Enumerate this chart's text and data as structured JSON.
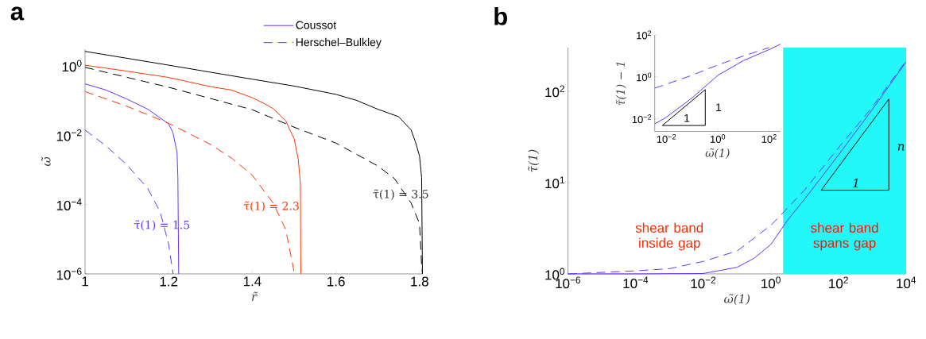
{
  "chart_data": [
    {
      "type": "line",
      "title": "a",
      "xlabel": "r̃",
      "ylabel": "ω̃",
      "log": "y",
      "xlim": [
        1,
        1.808
      ],
      "ylim": [
        1e-06,
        3
      ],
      "xticks": [
        1,
        1.2,
        1.4,
        1.6,
        1.8
      ],
      "yticks": [
        {
          "value": 1e-06,
          "label": "10$^{−6}$"
        },
        {
          "value": 0.0001,
          "label": "10$^{−4}$"
        },
        {
          "value": 0.01,
          "label": "10$^{−2}$"
        },
        {
          "value": 1,
          "label": "10$^{0}$"
        }
      ],
      "legend": "top right",
      "marker": "none",
      "series": [
        {
          "name": "Coussot",
          "color": "#6633ff",
          "line_style": "solid",
          "x": [
            1,
            1.05,
            1.1,
            1.15,
            1.2,
            1.21,
            1.22,
            1.222,
            1.224
          ],
          "values": [
            0.3,
            0.2,
            0.11,
            0.056,
            0.021,
            0.012,
            0.0032,
            0.0006,
            1e-06
          ]
        },
        {
          "name": "Herschel–Bulkley",
          "color": "#6633ff",
          "line_style": "dashed",
          "x": [
            1,
            1.05,
            1.1,
            1.15,
            1.18,
            1.2,
            1.2105
          ],
          "values": [
            0.014,
            0.0049,
            0.0014,
            0.00029,
            6e-05,
            7e-06,
            1e-06
          ]
        },
        {
          "color": "#ff3300",
          "line_style": "solid",
          "x": [
            1,
            1.1,
            1.2,
            1.3,
            1.35,
            1.4,
            1.43,
            1.45,
            1.48,
            1.49,
            1.5,
            1.51,
            1.515,
            1.516
          ],
          "values": [
            1.04,
            0.7,
            0.46,
            0.25,
            0.2,
            0.12,
            0.08,
            0.058,
            0.026,
            0.014,
            0.008,
            0.002,
            0.0004,
            1e-06
          ]
        },
        {
          "color": "#ff3300",
          "line_style": "dashed",
          "x": [
            1,
            1.1,
            1.2,
            1.3,
            1.35,
            1.4,
            1.45,
            1.48,
            1.501
          ],
          "values": [
            0.18,
            0.068,
            0.022,
            0.0054,
            0.0022,
            0.0007,
            0.00011,
            1.9e-05,
            1e-06
          ]
        },
        {
          "color": "#000000",
          "line_style": "solid",
          "x": [
            1,
            1.2,
            1.4,
            1.5,
            1.6,
            1.65,
            1.7,
            1.75,
            1.78,
            1.79,
            1.8,
            1.805,
            1.807
          ],
          "values": [
            2.6,
            1.04,
            0.41,
            0.26,
            0.15,
            0.1,
            0.056,
            0.034,
            0.014,
            0.0065,
            0.0025,
            0.0006,
            1e-06
          ]
        },
        {
          "color": "#000000",
          "line_style": "dashed",
          "x": [
            1,
            1.2,
            1.4,
            1.5,
            1.6,
            1.7,
            1.74,
            1.78,
            1.8,
            1.805,
            1.807
          ],
          "values": [
            0.9,
            0.24,
            0.054,
            0.017,
            0.0059,
            0.0013,
            0.00056,
            0.00011,
            2.8e-05,
            1.8e-06,
            1e-06
          ]
        }
      ],
      "annotations": [
        "τ̃(1) = 1.5",
        "τ̃(1) = 2.3",
        "τ̃(1) = 3.5"
      ]
    },
    {
      "type": "line",
      "title": "b",
      "xlabel": "ω̃(1)",
      "ylabel": "τ̃(1)",
      "log": "xy",
      "xlim": [
        1e-06,
        10000
      ],
      "ylim": [
        1,
        300
      ],
      "xticks": [
        {
          "value": 1e-06,
          "label": "10$^{−6}$"
        },
        {
          "value": 0.0001,
          "label": "10$^{−4}$"
        },
        {
          "value": 0.01,
          "label": "10$^{−2}$"
        },
        {
          "value": 1,
          "label": "10$^{0}$"
        },
        {
          "value": 100,
          "label": "10$^{2}$"
        },
        {
          "value": 10000,
          "label": "10$^{4}$"
        }
      ],
      "yticks": [
        {
          "value": 1,
          "label": "10$^{0}$"
        },
        {
          "value": 10,
          "label": "10$^{1}$"
        },
        {
          "value": 100,
          "label": "10$^{2}$"
        }
      ],
      "marker": "none",
      "series": [
        {
          "color": "#6633ff",
          "line_style": "solid",
          "x": [
            1e-06,
            0.0001,
            0.01,
            0.1,
            0.316,
            1,
            3.16,
            10,
            100,
            1000,
            10000
          ],
          "values": [
            1,
            1,
            1.01,
            1.18,
            1.48,
            2.1,
            3.9,
            6.6,
            20,
            63,
            210
          ]
        },
        {
          "color": "#6633ff",
          "line_style": "dashed",
          "x": [
            1e-06,
            0.0001,
            0.001,
            0.01,
            0.1,
            1,
            3.16,
            10,
            100,
            1000,
            10000
          ],
          "values": [
            1,
            1.08,
            1.14,
            1.37,
            1.78,
            3.4,
            5.3,
            8.3,
            24,
            67,
            215
          ]
        }
      ],
      "bands": [
        {
          "axis": "x",
          "from": 2.3,
          "to": 10000,
          "label": "shear band spans gap",
          "color": "#22f8f8"
        }
      ],
      "annotations": [
        "shear band inside gap",
        "n",
        "1"
      ]
    },
    {
      "type": "line",
      "xlabel": "ω̃(1)",
      "ylabel": "τ̃(1) − 1",
      "log": "xy",
      "xlim": [
        0.0035,
        275
      ],
      "ylim": [
        0.0025,
        100
      ],
      "xticks": [
        {
          "value": 0.01,
          "label": "10$^{−2}$"
        },
        {
          "value": 1,
          "label": "10$^{0}$"
        },
        {
          "value": 100,
          "label": "10$^{2}$"
        }
      ],
      "yticks": [
        {
          "value": 0.01,
          "label": "10$^{−2}$"
        },
        {
          "value": 1,
          "label": "10$^{0}$"
        },
        {
          "value": 100,
          "label": "10$^{2}$"
        }
      ],
      "marker": "none",
      "series": [
        {
          "color": "#6633ff",
          "line_style": "solid",
          "x": [
            0.0035,
            0.01,
            0.1,
            1,
            10,
            100,
            275
          ],
          "values": [
            0.0057,
            0.012,
            0.1,
            1.18,
            6,
            20,
            36
          ]
        },
        {
          "color": "#6633ff",
          "line_style": "dashed",
          "x": [
            0.0035,
            0.01,
            0.1,
            1,
            10,
            100
          ],
          "values": [
            0.29,
            0.45,
            1.2,
            3.7,
            9.9,
            25
          ]
        }
      ],
      "annotations": [
        "1",
        "1"
      ]
    }
  ]
}
